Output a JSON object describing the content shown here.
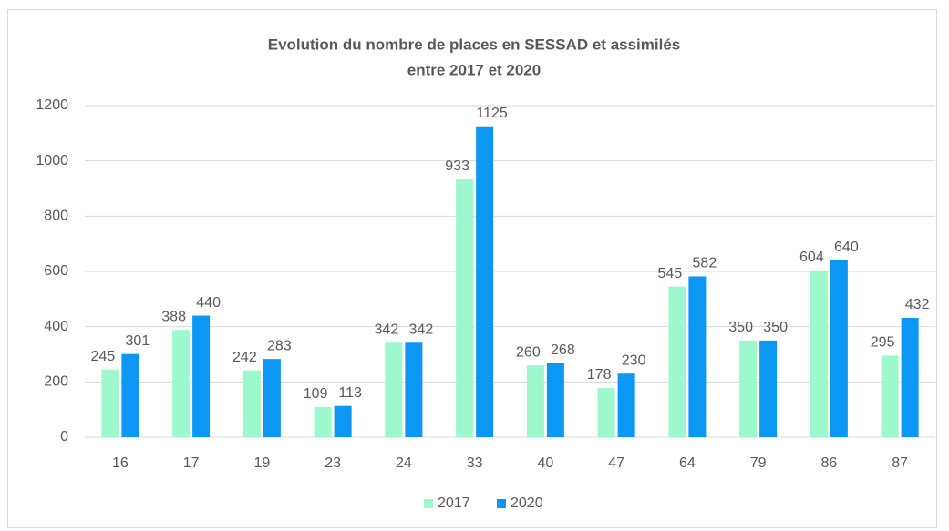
{
  "chart_data": {
    "type": "bar",
    "title": [
      "Evolution du nombre de places en SESSAD et assimilés",
      "entre 2017 et 2020"
    ],
    "categories": [
      "16",
      "17",
      "19",
      "23",
      "24",
      "33",
      "40",
      "47",
      "64",
      "79",
      "86",
      "87"
    ],
    "series": [
      {
        "name": "2017",
        "color": "#9ef8cd",
        "values": [
          245,
          388,
          242,
          109,
          342,
          933,
          260,
          178,
          545,
          350,
          604,
          295
        ]
      },
      {
        "name": "2020",
        "color": "#0c97f5",
        "values": [
          301,
          440,
          283,
          113,
          342,
          1125,
          268,
          230,
          582,
          350,
          640,
          432
        ]
      }
    ],
    "ylim": [
      0,
      1200
    ],
    "yticks": [
      0,
      200,
      400,
      600,
      800,
      1000,
      1200
    ],
    "grid": true,
    "legend": "bottom"
  }
}
